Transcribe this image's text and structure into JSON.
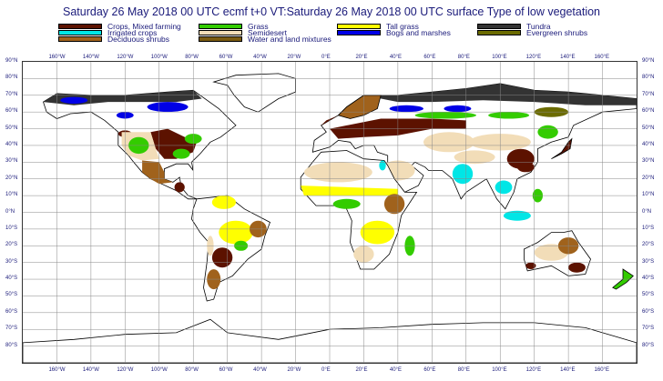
{
  "title": "Saturday 26 May 2018 00 UTC ecmf t+0 VT:Saturday 26 May 2018 00 UTC surface  Type of low vegetation",
  "legend": [
    {
      "label": "Crops, Mixed farming",
      "color": "#5c1200",
      "col": 0,
      "row": 0
    },
    {
      "label": "Irrigated crops",
      "color": "#00e6e6",
      "col": 0,
      "row": 1
    },
    {
      "label": "Deciduous shrubs",
      "color": "#a0621c",
      "col": 0,
      "row": 2
    },
    {
      "label": "Grass",
      "color": "#33cc00",
      "col": 1,
      "row": 0
    },
    {
      "label": "Semidesert",
      "color": "#f2ddb8",
      "col": 1,
      "row": 1
    },
    {
      "label": "Water and land mixtures",
      "color": "#7a5a10",
      "col": 1,
      "row": 2
    },
    {
      "label": "Tall grass",
      "color": "#ffff00",
      "col": 2,
      "row": 0
    },
    {
      "label": "Bogs and marshes",
      "color": "#0000e6",
      "col": 2,
      "row": 1
    },
    {
      "label": "Tundra",
      "color": "#333333",
      "col": 3,
      "row": 0
    },
    {
      "label": "Evergreen shrubs",
      "color": "#6b6b00",
      "col": 3,
      "row": 1
    }
  ],
  "lon_labels": [
    "160°W",
    "140°W",
    "120°W",
    "100°W",
    "80°W",
    "60°W",
    "40°W",
    "20°W",
    "0°E",
    "20°E",
    "40°E",
    "60°E",
    "80°E",
    "100°E",
    "120°E",
    "140°E",
    "160°E"
  ],
  "lat_labels": [
    "90°N",
    "80°N",
    "70°N",
    "60°N",
    "50°N",
    "40°N",
    "30°N",
    "20°N",
    "10°N",
    "0°N",
    "10°S",
    "20°S",
    "30°S",
    "40°S",
    "50°S",
    "60°S",
    "70°S",
    "80°S"
  ],
  "map_extent": {
    "lon_min": -180,
    "lon_max": 180,
    "lat_min": -90,
    "lat_max": 90
  }
}
